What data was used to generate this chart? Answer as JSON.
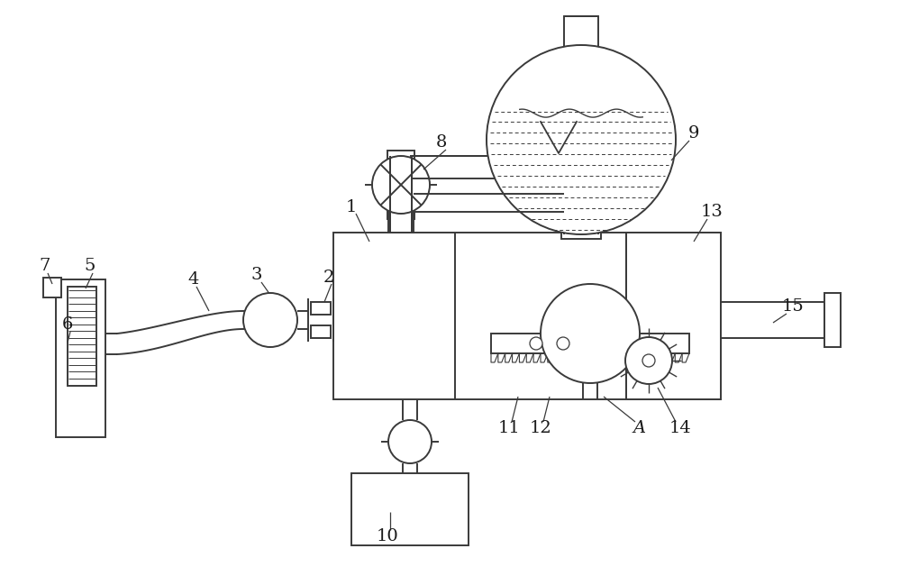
{
  "bg_color": "#ffffff",
  "line_color": "#3a3a3a",
  "label_color": "#1a1a1a",
  "fig_width": 10.0,
  "fig_height": 6.29,
  "dpi": 100,
  "lw_main": 1.4,
  "lw_thin": 0.8
}
